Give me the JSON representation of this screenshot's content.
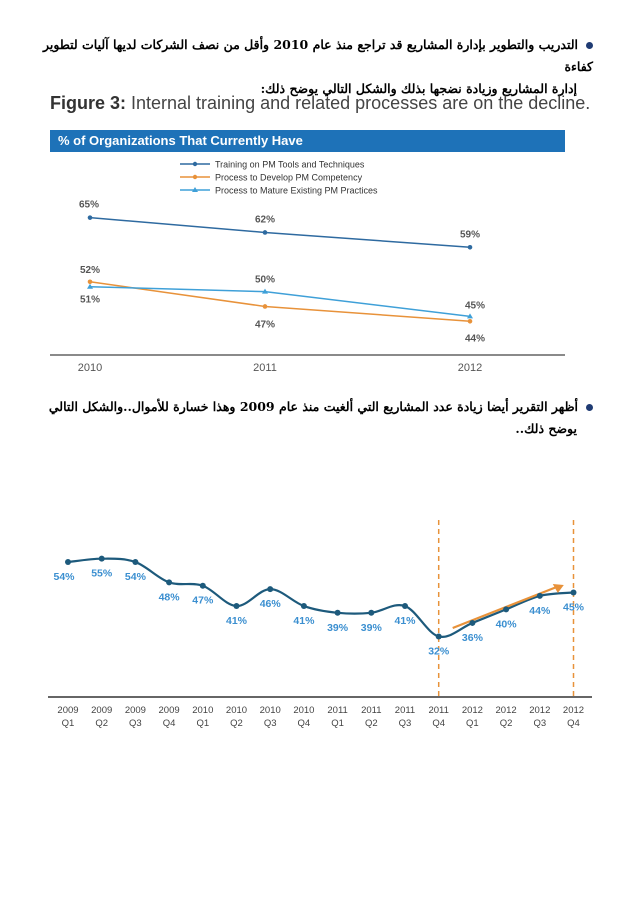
{
  "paragraph1": {
    "line1": "التدريب والتطوير بإدارة المشاريع قد تراجع منذ عام 2010 وأقل من نصف الشركات لديها آليات لتطوير كفاءة",
    "line2": "إدارة المشاريع وزيادة نضجها بذلك والشكل التالي يوضح ذلك:"
  },
  "figure3": {
    "title_bold": "Figure 3:",
    "title_rest": " Internal training and related processes are on the decline.",
    "banner": "% of Organizations That Currently Have",
    "colors": {
      "training": "#2e6aa0",
      "competency": "#e8923a",
      "mature": "#3fa0d8",
      "banner": "#1e72b8"
    },
    "chart_data": {
      "type": "line",
      "categories": [
        "2010",
        "2011",
        "2012"
      ],
      "series": [
        {
          "name": "Training on PM Tools and Techniques",
          "values": [
            65,
            62,
            59
          ],
          "labels": [
            "65%",
            "62%",
            "59%"
          ]
        },
        {
          "name": "Process to Develop PM Competency",
          "values": [
            52,
            47,
            44
          ],
          "labels": [
            "52%",
            "47%",
            "44%"
          ]
        },
        {
          "name": "Process to Mature Existing PM Practices",
          "values": [
            51,
            50,
            45
          ],
          "labels": [
            "51%",
            "50%",
            "45%"
          ]
        }
      ],
      "ylim": [
        40,
        70
      ]
    }
  },
  "paragraph2": {
    "line1": "أظهر التقرير أيضا زيادة عدد المشاريع التي ألغيت منذ عام 2009 وهذا خسارة للأموال..والشكل التالي",
    "line2": "يوضح ذلك.."
  },
  "figure4": {
    "colors": {
      "line": "#1d5a7c",
      "label": "#3b8fd0",
      "dashed": "#e8923a",
      "arrow": "#e8923a"
    },
    "chart_data": {
      "type": "line",
      "years": [
        "2009",
        "2009",
        "2009",
        "2009",
        "2010",
        "2010",
        "2010",
        "2010",
        "2011",
        "2011",
        "2011",
        "2011",
        "2012",
        "2012",
        "2012",
        "2012"
      ],
      "quarters": [
        "Q1",
        "Q2",
        "Q3",
        "Q4",
        "Q1",
        "Q2",
        "Q3",
        "Q4",
        "Q1",
        "Q2",
        "Q3",
        "Q4",
        "Q1",
        "Q2",
        "Q3",
        "Q4"
      ],
      "values": [
        54,
        55,
        54,
        48,
        47,
        41,
        46,
        41,
        39,
        39,
        41,
        32,
        36,
        40,
        44,
        45
      ],
      "labels": [
        "54%",
        "55%",
        "54%",
        "48%",
        "47%",
        "41%",
        "46%",
        "41%",
        "39%",
        "39%",
        "41%",
        "32%",
        "36%",
        "40%",
        "44%",
        "45%"
      ],
      "ylim": [
        28,
        62
      ]
    }
  }
}
